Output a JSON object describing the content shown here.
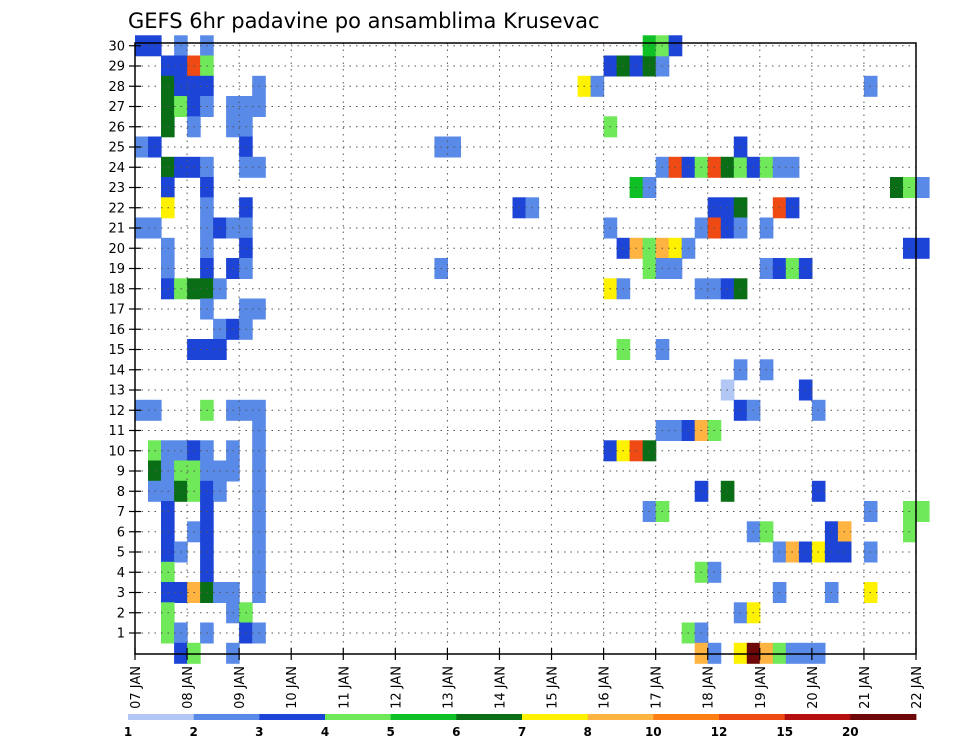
{
  "chart_data": {
    "type": "heatmap",
    "title": "GEFS 6hr padavine po ansamblima Krusevac",
    "x_tick_labels": [
      "07 JAN",
      "08 JAN",
      "09 JAN",
      "10 JAN",
      "11 JAN",
      "12 JAN",
      "13 JAN",
      "14 JAN",
      "15 JAN",
      "16 JAN",
      "17 JAN",
      "18 JAN",
      "19 JAN",
      "20 JAN",
      "21 JAN",
      "22 JAN"
    ],
    "x_range_days": [
      7,
      22
    ],
    "y_tick_labels": [
      "1",
      "2",
      "3",
      "4",
      "5",
      "6",
      "7",
      "8",
      "9",
      "10",
      "11",
      "12",
      "13",
      "14",
      "15",
      "16",
      "17",
      "18",
      "19",
      "20",
      "21",
      "22",
      "23",
      "24",
      "25",
      "26",
      "27",
      "28",
      "29",
      "30"
    ],
    "y_range": [
      0,
      30
    ],
    "grid": true,
    "time_step_hours": 6,
    "colorbar": {
      "placement": "bottom",
      "labels": [
        "1",
        "2",
        "3",
        "4",
        "5",
        "6",
        "7",
        "8",
        "10",
        "12",
        "15",
        "20"
      ],
      "colors": [
        "#b3c7f5",
        "#5a8ae8",
        "#1c44d6",
        "#6fe85a",
        "#0fbf26",
        "#0a6e16",
        "#fff200",
        "#ffb340",
        "#ff7f14",
        "#f04a14",
        "#b40e0e",
        "#6e0808"
      ]
    },
    "cells": [
      [
        7.0,
        30,
        2
      ],
      [
        7.25,
        30,
        2
      ],
      [
        7.75,
        30,
        1
      ],
      [
        8.25,
        30,
        1
      ],
      [
        7.5,
        29,
        2
      ],
      [
        7.75,
        29,
        2
      ],
      [
        8.0,
        29,
        9
      ],
      [
        8.25,
        29,
        3
      ],
      [
        7.5,
        28,
        5
      ],
      [
        7.75,
        28,
        2
      ],
      [
        8.0,
        28,
        2
      ],
      [
        8.25,
        28,
        2
      ],
      [
        9.25,
        28,
        1
      ],
      [
        7.5,
        27,
        5
      ],
      [
        7.75,
        27,
        3
      ],
      [
        8.0,
        27,
        2
      ],
      [
        8.25,
        27,
        1
      ],
      [
        8.75,
        27,
        1
      ],
      [
        9.0,
        27,
        1
      ],
      [
        7.5,
        26,
        5
      ],
      [
        8.0,
        26,
        1
      ],
      [
        8.75,
        26,
        1
      ],
      [
        9.0,
        26,
        1
      ],
      [
        7.0,
        25,
        1
      ],
      [
        7.25,
        25,
        2
      ],
      [
        9.0,
        25,
        2
      ],
      [
        7.5,
        24,
        5
      ],
      [
        7.75,
        24,
        2
      ],
      [
        8.0,
        24,
        2
      ],
      [
        8.25,
        24,
        1
      ],
      [
        7.5,
        23,
        2
      ],
      [
        8.25,
        23,
        2
      ],
      [
        7.5,
        22,
        6
      ],
      [
        8.25,
        22,
        1
      ],
      [
        9.0,
        22,
        2
      ],
      [
        7.0,
        21,
        1
      ],
      [
        7.25,
        21,
        1
      ],
      [
        8.25,
        21,
        1
      ],
      [
        8.5,
        21,
        2
      ],
      [
        8.75,
        21,
        1
      ],
      [
        9.0,
        21,
        1
      ],
      [
        7.5,
        20,
        1
      ],
      [
        8.25,
        20,
        1
      ],
      [
        9.0,
        20,
        2
      ],
      [
        7.5,
        19,
        1
      ],
      [
        8.25,
        19,
        2
      ],
      [
        8.75,
        19,
        2
      ],
      [
        9.0,
        19,
        1
      ],
      [
        7.5,
        18,
        2
      ],
      [
        7.75,
        18,
        3
      ],
      [
        8.0,
        18,
        5
      ],
      [
        8.25,
        18,
        5
      ],
      [
        8.5,
        18,
        1
      ],
      [
        8.25,
        17,
        1
      ],
      [
        8.5,
        16,
        1
      ],
      [
        8.75,
        16,
        2
      ],
      [
        9.0,
        16,
        1
      ],
      [
        8.0,
        15,
        2
      ],
      [
        8.25,
        15,
        2
      ],
      [
        8.5,
        15,
        2
      ],
      [
        7.0,
        12,
        1
      ],
      [
        7.25,
        12,
        1
      ],
      [
        8.25,
        12,
        3
      ],
      [
        8.75,
        12,
        1
      ],
      [
        9.0,
        12,
        1
      ],
      [
        9.25,
        12,
        1
      ],
      [
        7.25,
        10,
        3
      ],
      [
        7.5,
        10,
        1
      ],
      [
        7.75,
        10,
        1
      ],
      [
        8.0,
        10,
        2
      ],
      [
        8.25,
        10,
        1
      ],
      [
        8.75,
        10,
        1
      ],
      [
        7.25,
        9,
        5
      ],
      [
        7.5,
        9,
        1
      ],
      [
        7.75,
        9,
        3
      ],
      [
        8.0,
        9,
        3
      ],
      [
        8.25,
        9,
        1
      ],
      [
        8.5,
        9,
        1
      ],
      [
        8.75,
        9,
        1
      ],
      [
        7.25,
        8,
        1
      ],
      [
        7.5,
        8,
        1
      ],
      [
        7.75,
        8,
        5
      ],
      [
        8.0,
        8,
        3
      ],
      [
        8.25,
        8,
        2
      ],
      [
        8.5,
        8,
        1
      ],
      [
        7.5,
        7,
        2
      ],
      [
        8.25,
        7,
        2
      ],
      [
        7.5,
        6,
        2
      ],
      [
        8.0,
        6,
        1
      ],
      [
        8.25,
        6,
        2
      ],
      [
        7.5,
        5,
        2
      ],
      [
        7.75,
        5,
        1
      ],
      [
        8.25,
        5,
        2
      ],
      [
        7.5,
        4,
        3
      ],
      [
        8.25,
        4,
        2
      ],
      [
        7.5,
        3,
        2
      ],
      [
        7.75,
        3,
        2
      ],
      [
        8.0,
        3,
        7
      ],
      [
        8.25,
        3,
        5
      ],
      [
        8.5,
        3,
        1
      ],
      [
        8.75,
        3,
        1
      ],
      [
        7.5,
        2,
        3
      ],
      [
        8.75,
        2,
        1
      ],
      [
        9.0,
        2,
        3
      ],
      [
        7.5,
        1,
        3
      ],
      [
        7.75,
        1,
        1
      ],
      [
        8.25,
        1,
        1
      ],
      [
        9.0,
        1,
        2
      ],
      [
        9.25,
        1,
        1
      ],
      [
        7.75,
        0,
        2
      ],
      [
        8.0,
        0,
        3
      ],
      [
        8.75,
        0,
        1
      ],
      [
        9.0,
        24,
        1
      ],
      [
        9.25,
        27,
        1
      ],
      [
        9.25,
        24,
        1
      ],
      [
        9.0,
        17,
        1
      ],
      [
        9.25,
        17,
        1
      ],
      [
        9.25,
        11,
        1
      ],
      [
        9.25,
        10,
        1
      ],
      [
        9.25,
        9,
        1
      ],
      [
        9.25,
        8,
        1
      ],
      [
        9.25,
        7,
        1
      ],
      [
        9.25,
        6,
        1
      ],
      [
        9.25,
        5,
        1
      ],
      [
        9.25,
        4,
        1
      ],
      [
        9.25,
        3,
        1
      ],
      [
        12.75,
        25,
        1
      ],
      [
        13.0,
        25,
        1
      ],
      [
        12.75,
        19,
        1
      ],
      [
        14.25,
        22,
        2
      ],
      [
        14.5,
        22,
        1
      ],
      [
        15.5,
        28,
        6
      ],
      [
        15.75,
        28,
        1
      ],
      [
        16.0,
        29,
        2
      ],
      [
        16.25,
        29,
        5
      ],
      [
        16.5,
        29,
        2
      ],
      [
        16.75,
        29,
        5
      ],
      [
        17.0,
        29,
        1
      ],
      [
        16.75,
        30,
        4
      ],
      [
        17.0,
        30,
        3
      ],
      [
        17.25,
        30,
        2
      ],
      [
        16.0,
        26,
        3
      ],
      [
        16.5,
        23,
        4
      ],
      [
        16.75,
        23,
        1
      ],
      [
        16.0,
        21,
        1
      ],
      [
        16.25,
        20,
        2
      ],
      [
        16.5,
        20,
        7
      ],
      [
        16.75,
        20,
        3
      ],
      [
        17.0,
        20,
        7
      ],
      [
        17.25,
        20,
        6
      ],
      [
        17.5,
        20,
        1
      ],
      [
        16.75,
        19,
        3
      ],
      [
        17.0,
        19,
        1
      ],
      [
        17.25,
        19,
        1
      ],
      [
        16.0,
        18,
        6
      ],
      [
        16.25,
        18,
        1
      ],
      [
        16.25,
        15,
        3
      ],
      [
        17.0,
        15,
        1
      ],
      [
        16.0,
        10,
        2
      ],
      [
        16.25,
        10,
        6
      ],
      [
        16.5,
        10,
        9
      ],
      [
        16.75,
        10,
        5
      ],
      [
        16.75,
        7,
        1
      ],
      [
        17.0,
        7,
        3
      ],
      [
        17.0,
        24,
        1
      ],
      [
        17.25,
        24,
        9
      ],
      [
        17.5,
        24,
        2
      ],
      [
        17.75,
        24,
        3
      ],
      [
        18.0,
        24,
        9
      ],
      [
        18.25,
        24,
        5
      ],
      [
        18.5,
        24,
        3
      ],
      [
        18.75,
        24,
        2
      ],
      [
        19.0,
        24,
        3
      ],
      [
        19.25,
        24,
        1
      ],
      [
        19.5,
        24,
        1
      ],
      [
        18.5,
        25,
        2
      ],
      [
        18.0,
        22,
        2
      ],
      [
        18.25,
        22,
        2
      ],
      [
        18.5,
        22,
        5
      ],
      [
        19.25,
        22,
        9
      ],
      [
        19.5,
        22,
        2
      ],
      [
        17.75,
        21,
        1
      ],
      [
        18.0,
        21,
        9
      ],
      [
        18.25,
        21,
        2
      ],
      [
        18.5,
        21,
        1
      ],
      [
        19.0,
        21,
        1
      ],
      [
        17.75,
        18,
        1
      ],
      [
        18.0,
        18,
        1
      ],
      [
        18.25,
        18,
        2
      ],
      [
        18.5,
        18,
        5
      ],
      [
        19.0,
        19,
        1
      ],
      [
        19.25,
        19,
        2
      ],
      [
        19.5,
        19,
        3
      ],
      [
        19.75,
        19,
        2
      ],
      [
        17.0,
        11,
        1
      ],
      [
        17.25,
        11,
        1
      ],
      [
        17.5,
        11,
        2
      ],
      [
        17.75,
        11,
        7
      ],
      [
        18.0,
        11,
        3
      ],
      [
        18.25,
        13,
        0
      ],
      [
        18.5,
        14,
        1
      ],
      [
        19.0,
        14,
        1
      ],
      [
        19.75,
        13,
        2
      ],
      [
        18.5,
        12,
        2
      ],
      [
        18.75,
        12,
        1
      ],
      [
        20.0,
        12,
        1
      ],
      [
        17.75,
        8,
        2
      ],
      [
        18.25,
        8,
        5
      ],
      [
        20.0,
        8,
        2
      ],
      [
        18.75,
        6,
        1
      ],
      [
        19.0,
        6,
        3
      ],
      [
        20.25,
        6,
        2
      ],
      [
        20.5,
        6,
        7
      ],
      [
        21.75,
        6,
        3
      ],
      [
        21.0,
        7,
        1
      ],
      [
        21.75,
        7,
        3
      ],
      [
        22.0,
        7,
        3
      ],
      [
        19.25,
        5,
        1
      ],
      [
        19.5,
        5,
        7
      ],
      [
        19.75,
        5,
        2
      ],
      [
        20.0,
        5,
        6
      ],
      [
        20.25,
        5,
        2
      ],
      [
        20.5,
        5,
        2
      ],
      [
        21.0,
        5,
        1
      ],
      [
        17.75,
        4,
        3
      ],
      [
        18.0,
        4,
        1
      ],
      [
        19.25,
        3,
        1
      ],
      [
        20.25,
        3,
        1
      ],
      [
        21.0,
        3,
        6
      ],
      [
        18.5,
        2,
        1
      ],
      [
        18.75,
        2,
        6
      ],
      [
        17.5,
        1,
        3
      ],
      [
        17.75,
        1,
        1
      ],
      [
        17.75,
        0,
        7
      ],
      [
        18.0,
        0,
        1
      ],
      [
        18.5,
        0,
        6
      ],
      [
        18.75,
        0,
        11
      ],
      [
        19.0,
        0,
        7
      ],
      [
        19.25,
        0,
        3
      ],
      [
        19.5,
        0,
        1
      ],
      [
        19.75,
        0,
        1
      ],
      [
        20.0,
        0,
        1
      ],
      [
        21.0,
        28,
        1
      ],
      [
        21.5,
        23,
        5
      ],
      [
        21.75,
        23,
        3
      ],
      [
        22.0,
        23,
        1
      ],
      [
        21.75,
        20,
        2
      ],
      [
        22.0,
        20,
        2
      ]
    ]
  }
}
